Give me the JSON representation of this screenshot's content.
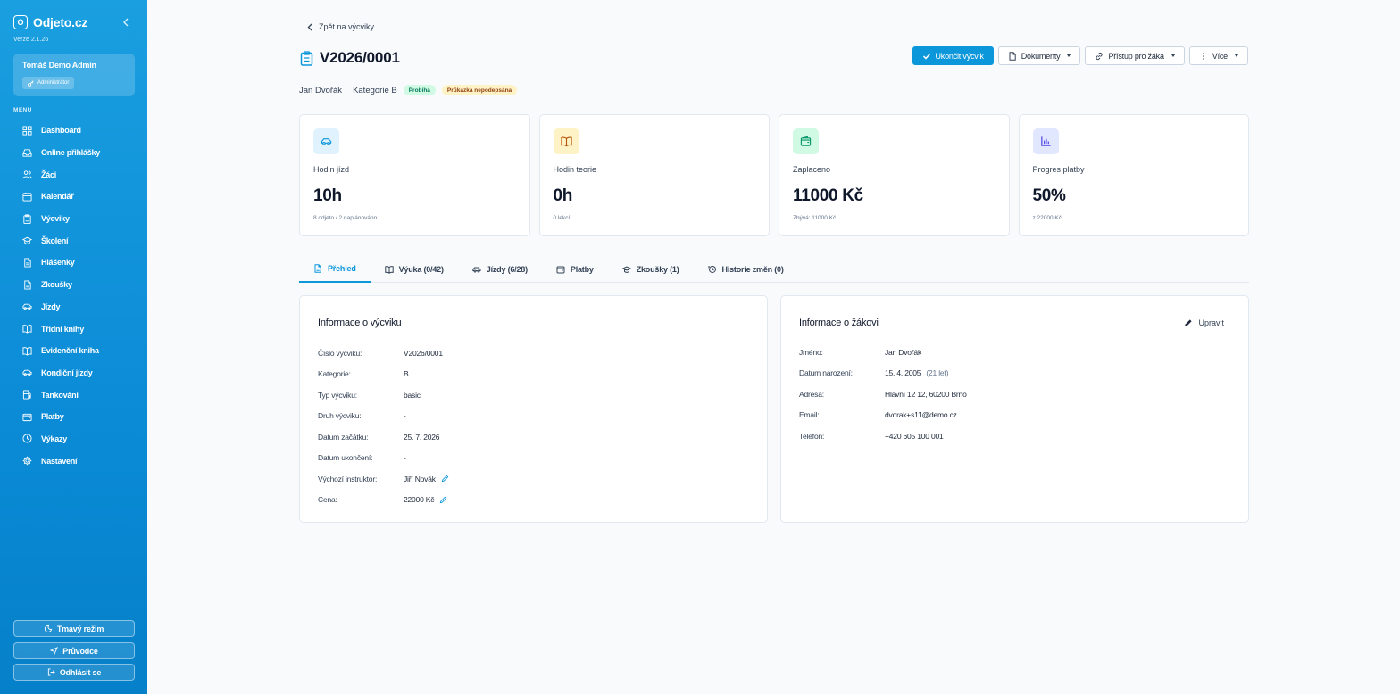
{
  "sidebar": {
    "brand_logo": "O",
    "brand_name": "Odjeto.cz",
    "version": "Verze 2.1.26",
    "user_name": "Tomáš Demo Admin",
    "user_role": "Administrátor",
    "menu_heading": "MENU",
    "items": [
      {
        "label": "Dashboard",
        "icon": "grid-icon"
      },
      {
        "label": "Online přihlášky",
        "icon": "inbox-icon"
      },
      {
        "label": "Žáci",
        "icon": "users-icon"
      },
      {
        "label": "Kalendář",
        "icon": "calendar-icon"
      },
      {
        "label": "Výcviky",
        "icon": "clipboard-icon"
      },
      {
        "label": "Školení",
        "icon": "graduation-cap-icon"
      },
      {
        "label": "Hlášenky",
        "icon": "file-icon"
      },
      {
        "label": "Zkoušky",
        "icon": "file-icon"
      },
      {
        "label": "Jízdy",
        "icon": "car-icon"
      },
      {
        "label": "Třídní knihy",
        "icon": "book-icon"
      },
      {
        "label": "Evidenční kniha",
        "icon": "book-icon"
      },
      {
        "label": "Kondiční jízdy",
        "icon": "car-icon"
      },
      {
        "label": "Tankování",
        "icon": "fuel-icon"
      },
      {
        "label": "Platby",
        "icon": "wallet-icon"
      },
      {
        "label": "Výkazy",
        "icon": "clock-icon"
      },
      {
        "label": "Nastavení",
        "icon": "gear-icon"
      }
    ],
    "dark_mode_label": "Tmavý režim",
    "guide_label": "Průvodce",
    "logout_label": "Odhlásit se"
  },
  "header": {
    "back_label": "Zpět na výcviky",
    "title": "V2026/0001",
    "student": "Jan Dvořák",
    "category": "Kategorie B",
    "status_badge": "Probíhá",
    "card_badge": "Průkazka nepodepsána",
    "actions": {
      "finish": "Ukončit výcvik",
      "documents": "Dokumenty",
      "access": "Přístup pro žáka",
      "more": "Více"
    }
  },
  "stats": [
    {
      "label": "Hodin jízd",
      "value": "10h",
      "sub": "8 odjeto / 2 naplánováno",
      "icon": "car-icon",
      "color": "#0d97db",
      "bg": "#e0f2fe"
    },
    {
      "label": "Hodin teorie",
      "value": "0h",
      "sub": "0 lekcí",
      "icon": "book-open-icon",
      "color": "#b45309",
      "bg": "#fef3c7"
    },
    {
      "label": "Zaplaceno",
      "value": "11000 Kč",
      "sub": "Zbývá: 11000 Kč",
      "icon": "wallet-icon",
      "color": "#059669",
      "bg": "#d1fae5"
    },
    {
      "label": "Progres platby",
      "value": "50%",
      "sub": "z 22000 Kč",
      "icon": "bar-chart-icon",
      "color": "#4f46e5",
      "bg": "#e0e7ff"
    }
  ],
  "tabs": [
    {
      "label": "Přehled",
      "icon": "document-icon",
      "active": true
    },
    {
      "label": "Výuka (0/42)",
      "icon": "book-open-icon",
      "active": false
    },
    {
      "label": "Jízdy (6/28)",
      "icon": "car-icon",
      "active": false
    },
    {
      "label": "Platby",
      "icon": "wallet-icon",
      "active": false
    },
    {
      "label": "Zkoušky (1)",
      "icon": "graduation-cap-icon",
      "active": false
    },
    {
      "label": "Historie změn (0)",
      "icon": "history-icon",
      "active": false
    }
  ],
  "training_info": {
    "title": "Informace o výcviku",
    "rows": [
      {
        "label": "Číslo výcviku:",
        "value": "V2026/0001"
      },
      {
        "label": "Kategorie:",
        "value": "B"
      },
      {
        "label": "Typ výcviku:",
        "value": "basic"
      },
      {
        "label": "Druh výcviku:",
        "value": "-"
      },
      {
        "label": "Datum začátku:",
        "value": "25. 7. 2026"
      },
      {
        "label": "Datum ukončení:",
        "value": "-"
      },
      {
        "label": "Výchozí instruktor:",
        "value": "Jiří Novák"
      },
      {
        "label": "Cena:",
        "value": "22000 Kč"
      }
    ]
  },
  "student_info": {
    "title": "Informace o žákovi",
    "edit_label": "Upravit",
    "rows": [
      {
        "label": "Jméno:",
        "value": "Jan Dvořák"
      },
      {
        "label": "Datum narození:",
        "value": "15. 4. 2005",
        "extra": "(21 let)"
      },
      {
        "label": "Adresa:",
        "value": "Hlavní 12 12, 60200 Brno"
      },
      {
        "label": "Email:",
        "value": "dvorak+s11@demo.cz"
      },
      {
        "label": "Telefon:",
        "value": "+420 605 100 001"
      }
    ]
  }
}
